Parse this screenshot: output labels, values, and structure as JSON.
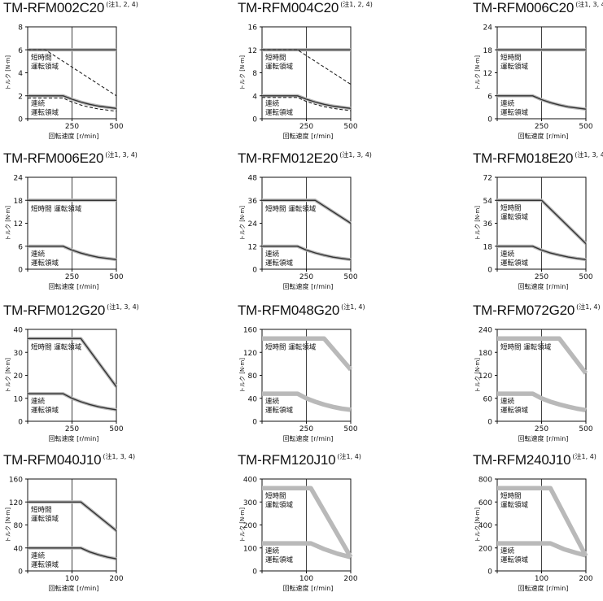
{
  "labels": {
    "ylabel": "トルク [N·m]",
    "xlabel": "回転速度 [r/min]",
    "short_region": [
      "短時間",
      "運転領域"
    ],
    "short_region_inline": "短時間 運転領域",
    "cont_region": [
      "連続",
      "運転領域"
    ]
  },
  "colors": {
    "axis": "#111111",
    "band": "#b9b9b9",
    "band_dark": "#333333",
    "line": "#111111"
  },
  "chart_data": [
    {
      "type": "line",
      "title": "TM-RFM002C20",
      "note": "(注1, 2, 4)",
      "xmax": 500,
      "xticks": [
        250,
        500
      ],
      "ymax": 8,
      "yticks": [
        0,
        2,
        4,
        6,
        8
      ],
      "short_label": "stacked",
      "style": "thin",
      "series": [
        {
          "name": "短時間 運転領域",
          "x": [
            0,
            500
          ],
          "y": [
            6,
            6
          ]
        },
        {
          "name": "連続 運転領域",
          "x": [
            0,
            200,
            250,
            300,
            350,
            400,
            450,
            500
          ],
          "y": [
            2,
            2,
            1.7,
            1.45,
            1.25,
            1.1,
            1.0,
            0.9
          ]
        }
      ],
      "dashed": [
        {
          "x": [
            0,
            100,
            500
          ],
          "y": [
            6,
            6,
            2
          ]
        },
        {
          "x": [
            0,
            200,
            250,
            300,
            350,
            400,
            450,
            500
          ],
          "y": [
            1.8,
            1.8,
            1.45,
            1.2,
            1.0,
            0.85,
            0.75,
            0.65
          ]
        }
      ]
    },
    {
      "type": "line",
      "title": "TM-RFM004C20",
      "note": "(注1, 2, 4)",
      "xmax": 500,
      "xticks": [
        250,
        500
      ],
      "ymax": 16,
      "yticks": [
        0,
        4,
        8,
        12,
        16
      ],
      "short_label": "stacked",
      "style": "thin",
      "series": [
        {
          "name": "短時間 運転領域",
          "x": [
            0,
            500
          ],
          "y": [
            12,
            12
          ]
        },
        {
          "name": "連続 運転領域",
          "x": [
            0,
            200,
            250,
            300,
            350,
            400,
            450,
            500
          ],
          "y": [
            4,
            4,
            3.4,
            2.9,
            2.5,
            2.2,
            2.0,
            1.8
          ]
        }
      ],
      "dashed": [
        {
          "x": [
            0,
            200,
            500
          ],
          "y": [
            12,
            12,
            6
          ]
        },
        {
          "x": [
            0,
            200,
            250,
            300,
            350,
            400,
            450,
            500
          ],
          "y": [
            3.7,
            3.7,
            3.0,
            2.5,
            2.1,
            1.8,
            1.6,
            1.4
          ]
        }
      ]
    },
    {
      "type": "line",
      "title": "TM-RFM006C20",
      "note": "(注1, 3, 4)",
      "xmax": 500,
      "xticks": [
        250,
        500
      ],
      "ymax": 24,
      "yticks": [
        0,
        6,
        12,
        18,
        24
      ],
      "short_label": "stacked",
      "style": "thin",
      "series": [
        {
          "name": "短時間 運転領域",
          "x": [
            0,
            500
          ],
          "y": [
            18,
            18
          ]
        },
        {
          "name": "連続 運転領域",
          "x": [
            0,
            200,
            250,
            300,
            350,
            400,
            450,
            500
          ],
          "y": [
            6,
            6,
            5.0,
            4.2,
            3.6,
            3.1,
            2.8,
            2.5
          ]
        }
      ],
      "dashed": []
    },
    {
      "type": "line",
      "title": "TM-RFM006E20",
      "note": "(注1, 3, 4)",
      "xmax": 500,
      "xticks": [
        250,
        500
      ],
      "ymax": 24,
      "yticks": [
        0,
        6,
        12,
        18,
        24
      ],
      "short_label": "inline",
      "style": "thin",
      "series": [
        {
          "name": "短時間 運転領域",
          "x": [
            0,
            500
          ],
          "y": [
            18,
            18
          ]
        },
        {
          "name": "連続 運転領域",
          "x": [
            0,
            200,
            250,
            300,
            350,
            400,
            450,
            500
          ],
          "y": [
            6,
            6,
            5.0,
            4.2,
            3.6,
            3.1,
            2.8,
            2.5
          ]
        }
      ],
      "dashed": []
    },
    {
      "type": "line",
      "title": "TM-RFM012E20",
      "note": "(注1, 3, 4)",
      "xmax": 500,
      "xticks": [
        250,
        500
      ],
      "ymax": 48,
      "yticks": [
        0,
        12,
        24,
        36,
        48
      ],
      "short_label": "inline",
      "style": "thin",
      "series": [
        {
          "name": "短時間 運転領域",
          "x": [
            0,
            300,
            500
          ],
          "y": [
            36,
            36,
            24
          ]
        },
        {
          "name": "連続 運転領域",
          "x": [
            0,
            200,
            250,
            300,
            350,
            400,
            450,
            500
          ],
          "y": [
            12,
            12,
            10,
            8.5,
            7.3,
            6.3,
            5.6,
            5
          ]
        }
      ],
      "dashed": []
    },
    {
      "type": "line",
      "title": "TM-RFM018E20",
      "note": "(注1, 3, 4)",
      "xmax": 500,
      "xticks": [
        250,
        500
      ],
      "ymax": 72,
      "yticks": [
        0,
        18,
        36,
        54,
        72
      ],
      "short_label": "stacked",
      "style": "thin",
      "series": [
        {
          "name": "短時間 運転領域",
          "x": [
            0,
            250,
            500
          ],
          "y": [
            54,
            54,
            20
          ]
        },
        {
          "name": "連続 運転領域",
          "x": [
            0,
            200,
            250,
            300,
            350,
            400,
            450,
            500
          ],
          "y": [
            18,
            18,
            15,
            12.7,
            11,
            9.5,
            8.4,
            7.5
          ]
        }
      ],
      "dashed": []
    },
    {
      "type": "line",
      "title": "TM-RFM012G20",
      "note": "(注1, 3, 4)",
      "xmax": 500,
      "xticks": [
        250,
        500
      ],
      "ymax": 40,
      "yticks": [
        0,
        10,
        20,
        30,
        40
      ],
      "short_label": "inline",
      "style": "thin",
      "series": [
        {
          "name": "短時間 運転領域",
          "x": [
            0,
            300,
            500
          ],
          "y": [
            36,
            36,
            15
          ]
        },
        {
          "name": "連続 運転領域",
          "x": [
            0,
            200,
            250,
            300,
            350,
            400,
            450,
            500
          ],
          "y": [
            12,
            12,
            10,
            8.5,
            7.3,
            6.3,
            5.6,
            5
          ]
        }
      ],
      "dashed": []
    },
    {
      "type": "line",
      "title": "TM-RFM048G20",
      "note": "(注1, 4)",
      "xmax": 500,
      "xticks": [
        250,
        500
      ],
      "ymax": 160,
      "yticks": [
        0,
        40,
        80,
        120,
        160
      ],
      "short_label": "inline",
      "style": "thick",
      "series": [
        {
          "name": "短時間 運転領域",
          "x": [
            0,
            350,
            500
          ],
          "y": [
            144,
            144,
            90
          ]
        },
        {
          "name": "連続 運転領域",
          "x": [
            0,
            200,
            250,
            300,
            350,
            400,
            450,
            500
          ],
          "y": [
            48,
            48,
            40,
            34,
            29,
            25,
            22,
            20
          ]
        }
      ],
      "dashed": []
    },
    {
      "type": "line",
      "title": "TM-RFM072G20",
      "note": "(注1, 4)",
      "xmax": 500,
      "xticks": [
        250,
        500
      ],
      "ymax": 240,
      "yticks": [
        0,
        60,
        120,
        180,
        240
      ],
      "short_label": "inline",
      "style": "thick",
      "series": [
        {
          "name": "短時間 運転領域",
          "x": [
            0,
            350,
            500
          ],
          "y": [
            216,
            216,
            125
          ]
        },
        {
          "name": "連続 運転領域",
          "x": [
            0,
            200,
            250,
            300,
            350,
            400,
            450,
            500
          ],
          "y": [
            72,
            72,
            60,
            51,
            44,
            38,
            33,
            29
          ]
        }
      ],
      "dashed": []
    },
    {
      "type": "line",
      "title": "TM-RFM040J10",
      "note": "(注1, 3, 4)",
      "xmax": 200,
      "xticks": [
        100,
        200
      ],
      "ymax": 160,
      "yticks": [
        0,
        40,
        80,
        120,
        160
      ],
      "short_label": "stacked",
      "style": "thin",
      "series": [
        {
          "name": "短時間 運転領域",
          "x": [
            0,
            120,
            200
          ],
          "y": [
            120,
            120,
            70
          ]
        },
        {
          "name": "連続 運転領域",
          "x": [
            0,
            120,
            140,
            160,
            180,
            200
          ],
          "y": [
            40,
            40,
            33,
            28,
            24,
            21
          ]
        }
      ],
      "dashed": []
    },
    {
      "type": "line",
      "title": "TM-RFM120J10",
      "note": "(注1, 4)",
      "xmax": 200,
      "xticks": [
        100,
        200
      ],
      "ymax": 400,
      "yticks": [
        0,
        100,
        200,
        300,
        400
      ],
      "short_label": "stacked",
      "style": "thick",
      "series": [
        {
          "name": "短時間 運転領域",
          "x": [
            0,
            110,
            200
          ],
          "y": [
            360,
            360,
            60
          ]
        },
        {
          "name": "連続 運転領域",
          "x": [
            0,
            110,
            140,
            170,
            200
          ],
          "y": [
            120,
            120,
            95,
            75,
            60
          ]
        }
      ],
      "dashed": []
    },
    {
      "type": "line",
      "title": "TM-RFM240J10",
      "note": "(注1, 4)",
      "xmax": 200,
      "xticks": [
        100,
        200
      ],
      "ymax": 800,
      "yticks": [
        0,
        200,
        400,
        600,
        800
      ],
      "short_label": "stacked",
      "style": "thick",
      "series": [
        {
          "name": "短時間 運転領域",
          "x": [
            0,
            120,
            200
          ],
          "y": [
            720,
            720,
            130
          ]
        },
        {
          "name": "連続 運転領域",
          "x": [
            0,
            120,
            150,
            180,
            200
          ],
          "y": [
            240,
            240,
            190,
            155,
            135
          ]
        }
      ],
      "dashed": []
    }
  ]
}
